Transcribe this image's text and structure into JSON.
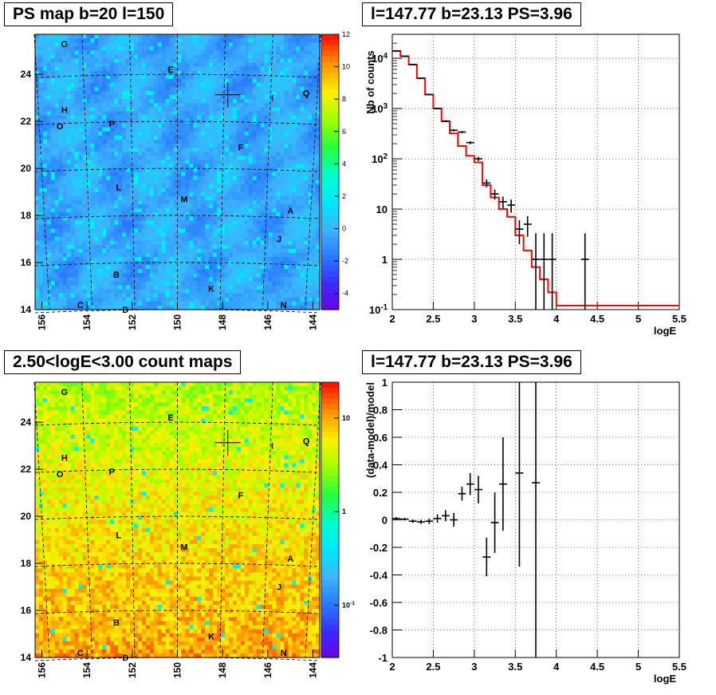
{
  "panels": {
    "ps_map_title": "PS map b=20 l=150",
    "spectrum_title": "l=147.77 b=23.13 PS=3.96",
    "count_map_title": "2.50<logE<3.00 count maps",
    "residual_title": "l=147.77 b=23.13 PS=3.96"
  },
  "chart_data": [
    {
      "id": "ps_map",
      "type": "heatmap",
      "title": "PS map b=20 l=150",
      "x_ticks": [
        "156",
        "154",
        "152",
        "150",
        "148",
        "146",
        "144"
      ],
      "y_ticks": [
        "14",
        "16",
        "18",
        "20",
        "22",
        "24"
      ],
      "xlim": [
        156.3,
        143.7
      ],
      "ylim": [
        14,
        25.7
      ],
      "colorbar_range": [
        -5,
        12
      ],
      "colorbar_ticks": [
        "12",
        "10",
        "8",
        "6",
        "4",
        "2",
        "0",
        "-2",
        "-4"
      ],
      "marker": {
        "l": 147.77,
        "b": 23.13
      },
      "source_labels": [
        {
          "name": "G",
          "l": 155.0,
          "b": 25.3
        },
        {
          "name": "E",
          "l": 150.3,
          "b": 24.2
        },
        {
          "name": "I",
          "l": 145.8,
          "b": 23.0
        },
        {
          "name": "Q",
          "l": 144.3,
          "b": 23.2
        },
        {
          "name": "H",
          "l": 155.0,
          "b": 22.5
        },
        {
          "name": "O",
          "l": 155.2,
          "b": 21.8
        },
        {
          "name": "P",
          "l": 152.9,
          "b": 21.9
        },
        {
          "name": "F",
          "l": 147.2,
          "b": 20.9
        },
        {
          "name": "L",
          "l": 152.6,
          "b": 19.2
        },
        {
          "name": "M",
          "l": 149.7,
          "b": 18.7
        },
        {
          "name": "A",
          "l": 145.0,
          "b": 18.2
        },
        {
          "name": "J",
          "l": 145.5,
          "b": 17.0
        },
        {
          "name": "B",
          "l": 152.7,
          "b": 15.5
        },
        {
          "name": "K",
          "l": 148.5,
          "b": 14.9
        },
        {
          "name": "C",
          "l": 154.3,
          "b": 14.2
        },
        {
          "name": "D",
          "l": 152.3,
          "b": 14.0
        },
        {
          "name": "N",
          "l": 145.3,
          "b": 14.2
        }
      ]
    },
    {
      "id": "spectrum",
      "type": "line",
      "title": "l=147.77 b=23.13 PS=3.96",
      "xlabel": "logE",
      "ylabel": "Nb of counts",
      "xlim": [
        2,
        5.5
      ],
      "ylim": [
        0.1,
        30000
      ],
      "y_scale": "log",
      "grid": true,
      "x_ticks": [
        "2",
        "2.5",
        "3",
        "3.5",
        "4",
        "4.5",
        "5",
        "5.5"
      ],
      "y_ticks": [
        "10^-1",
        "1",
        "10",
        "10^2",
        "10^3",
        "10^4"
      ],
      "series": [
        {
          "name": "data",
          "kind": "points",
          "x": [
            2.05,
            2.15,
            2.25,
            2.35,
            2.45,
            2.55,
            2.65,
            2.75,
            2.85,
            2.95,
            3.05,
            3.15,
            3.25,
            3.35,
            3.45,
            3.55,
            3.65,
            3.75,
            3.85,
            3.95,
            4.35
          ],
          "y": [
            14000,
            11000,
            7500,
            4000,
            1900,
            1000,
            560,
            370,
            340,
            210,
            100,
            33,
            20,
            14,
            12,
            4,
            5,
            1,
            1,
            1,
            1
          ],
          "err_low": [
            120,
            105,
            87,
            63,
            44,
            32,
            24,
            19,
            18,
            14,
            10,
            6,
            4.5,
            3.7,
            3.5,
            2,
            2.2,
            1,
            1,
            1,
            1
          ],
          "err_high": [
            120,
            105,
            87,
            63,
            44,
            32,
            24,
            19,
            18,
            14,
            10,
            6,
            4.5,
            3.7,
            3.5,
            2,
            2.2,
            2.3,
            2.3,
            2.3,
            2.3
          ]
        },
        {
          "name": "model",
          "kind": "step",
          "edges": [
            2.0,
            2.1,
            2.2,
            2.3,
            2.4,
            2.5,
            2.6,
            2.7,
            2.8,
            2.9,
            3.0,
            3.1,
            3.2,
            3.3,
            3.4,
            3.5,
            3.6,
            3.7,
            3.8,
            3.9,
            4.0,
            4.1,
            5.5
          ],
          "y": [
            14000,
            11000,
            7500,
            4000,
            1900,
            1000,
            560,
            320,
            180,
            115,
            85,
            30,
            17,
            10,
            7,
            3,
            1.5,
            0.7,
            0.4,
            0.22,
            0.12,
            0.12
          ]
        }
      ]
    },
    {
      "id": "count_map",
      "type": "heatmap",
      "title": "2.50<logE<3.00 count maps",
      "x_ticks": [
        "156",
        "154",
        "152",
        "150",
        "148",
        "146",
        "144"
      ],
      "y_ticks": [
        "14",
        "16",
        "18",
        "20",
        "22",
        "24"
      ],
      "xlim": [
        156.3,
        143.7
      ],
      "ylim": [
        14,
        25.7
      ],
      "colorbar_scale": "log",
      "colorbar_ticks": [
        "10",
        "1",
        "10^-1"
      ],
      "marker": {
        "l": 147.77,
        "b": 23.13
      }
    },
    {
      "id": "residuals",
      "type": "scatter",
      "title": "l=147.77 b=23.13 PS=3.96",
      "xlabel": "logE",
      "ylabel": "(data-model)/model",
      "xlim": [
        2,
        5.5
      ],
      "ylim": [
        -1,
        1
      ],
      "grid": true,
      "x_ticks": [
        "2",
        "2.5",
        "3",
        "3.5",
        "4",
        "4.5",
        "5",
        "5.5"
      ],
      "y_ticks": [
        "-1",
        "-0.8",
        "-0.6",
        "-0.4",
        "-0.2",
        "0",
        "0.2",
        "0.4",
        "0.6",
        "0.8",
        "1"
      ],
      "series": [
        {
          "name": "residuals",
          "x": [
            2.05,
            2.15,
            2.25,
            2.35,
            2.45,
            2.55,
            2.65,
            2.75,
            2.85,
            2.95,
            3.05,
            3.15,
            3.25,
            3.35,
            3.55,
            3.75
          ],
          "y": [
            0.01,
            0.005,
            -0.01,
            -0.015,
            -0.01,
            0.01,
            0.03,
            0.0,
            0.19,
            0.26,
            0.22,
            -0.27,
            -0.02,
            0.26,
            0.34,
            0.27
          ],
          "err": [
            0.01,
            0.01,
            0.012,
            0.015,
            0.02,
            0.03,
            0.04,
            0.05,
            0.05,
            0.08,
            0.1,
            0.14,
            0.22,
            0.34,
            0.68,
            1.3
          ]
        }
      ]
    }
  ]
}
